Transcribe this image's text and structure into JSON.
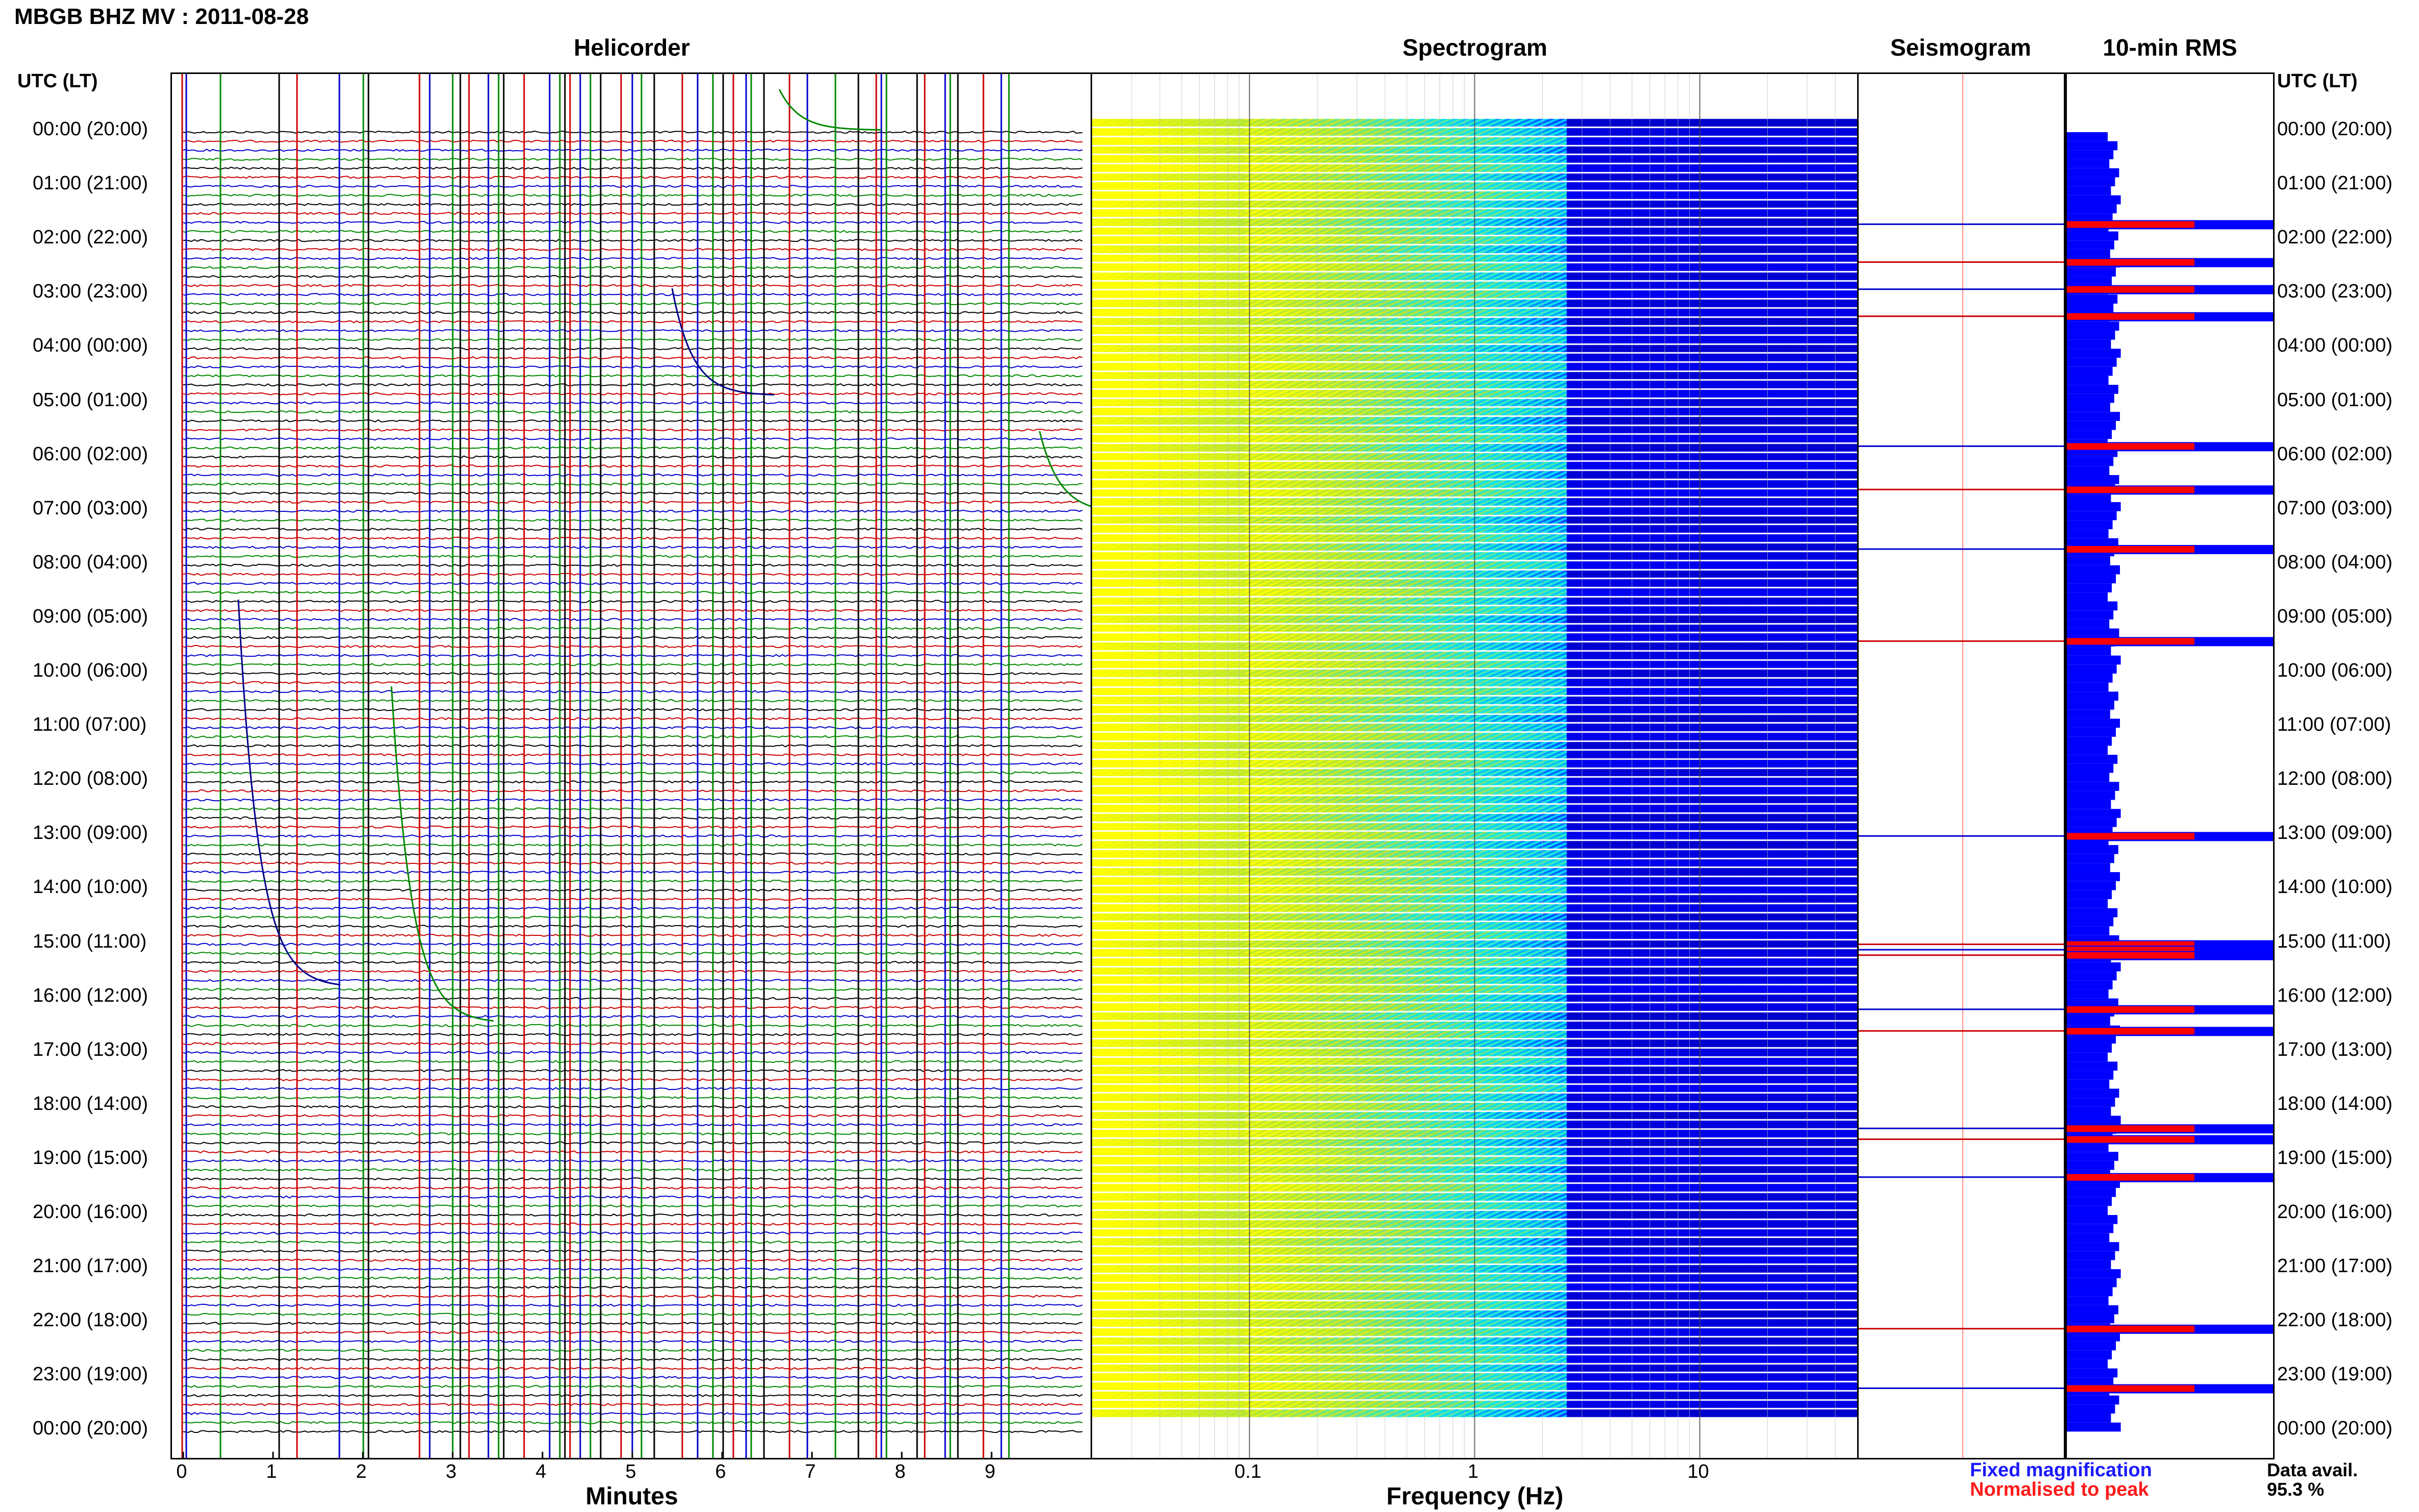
{
  "header": {
    "title": "MBGB BHZ MV : 2011-08-28"
  },
  "panels": {
    "helicorder": "Helicorder",
    "spectrogram": "Spectrogram",
    "seismogram": "Seismogram",
    "rms": "10-min RMS"
  },
  "axis": {
    "utc_label_left": "UTC (LT)",
    "utc_label_right": "UTC (LT)",
    "minutes_label": "Minutes",
    "frequency_label": "Frequency (Hz)"
  },
  "time_labels": [
    "00:00 (20:00)",
    "01:00 (21:00)",
    "02:00 (22:00)",
    "03:00 (23:00)",
    "04:00 (00:00)",
    "05:00 (01:00)",
    "06:00 (02:00)",
    "07:00 (03:00)",
    "08:00 (04:00)",
    "09:00 (05:00)",
    "10:00 (06:00)",
    "11:00 (07:00)",
    "12:00 (08:00)",
    "13:00 (09:00)",
    "14:00 (10:00)",
    "15:00 (11:00)",
    "16:00 (12:00)",
    "17:00 (13:00)",
    "18:00 (14:00)",
    "19:00 (15:00)",
    "20:00 (16:00)",
    "21:00 (17:00)",
    "22:00 (18:00)",
    "23:00 (19:00)",
    "00:00 (20:00)"
  ],
  "legend": {
    "fixed": "Fixed magnification",
    "normalised": "Normalised to peak",
    "fixed_color": "#1a1aff",
    "normalised_color": "#ff1a1a"
  },
  "availability": {
    "label": "Data avail.",
    "value": "95.3 %"
  },
  "colors": {
    "trace_cycle": [
      "#000000",
      "#cc0000",
      "#0000cc",
      "#008800"
    ],
    "rms_bar": "#0000ff",
    "rms_normalised": "#ff0000",
    "spectrogram_high": "#ffff00",
    "spectrogram_low": "#00008b"
  },
  "chart_data": [
    {
      "type": "line",
      "title": "Helicorder",
      "xlabel": "Minutes",
      "x_ticks": [
        0,
        1,
        2,
        3,
        4,
        5,
        6,
        7,
        8,
        9
      ],
      "xlim": [
        0,
        10
      ],
      "rows_per_hour": 6,
      "hours": 24
    },
    {
      "type": "heatmap",
      "title": "Spectrogram",
      "xlabel": "Frequency (Hz)",
      "x_scale": "log",
      "x_ticks": [
        0.1,
        1,
        10
      ],
      "xlim": [
        0.02,
        50
      ]
    },
    {
      "type": "bar",
      "title": "10-min RMS",
      "orientation": "horizontal",
      "series": [
        {
          "name": "Fixed magnification",
          "color": "#0000ff"
        },
        {
          "name": "Normalised to peak",
          "color": "#ff0000"
        }
      ],
      "spike_hours": [
        1.7,
        2.4,
        2.9,
        3.4,
        5.8,
        6.6,
        7.7,
        9.4,
        13.0,
        15.0,
        15.1,
        15.2,
        16.2,
        16.6,
        18.4,
        18.6,
        19.3,
        22.1,
        23.2
      ]
    }
  ]
}
